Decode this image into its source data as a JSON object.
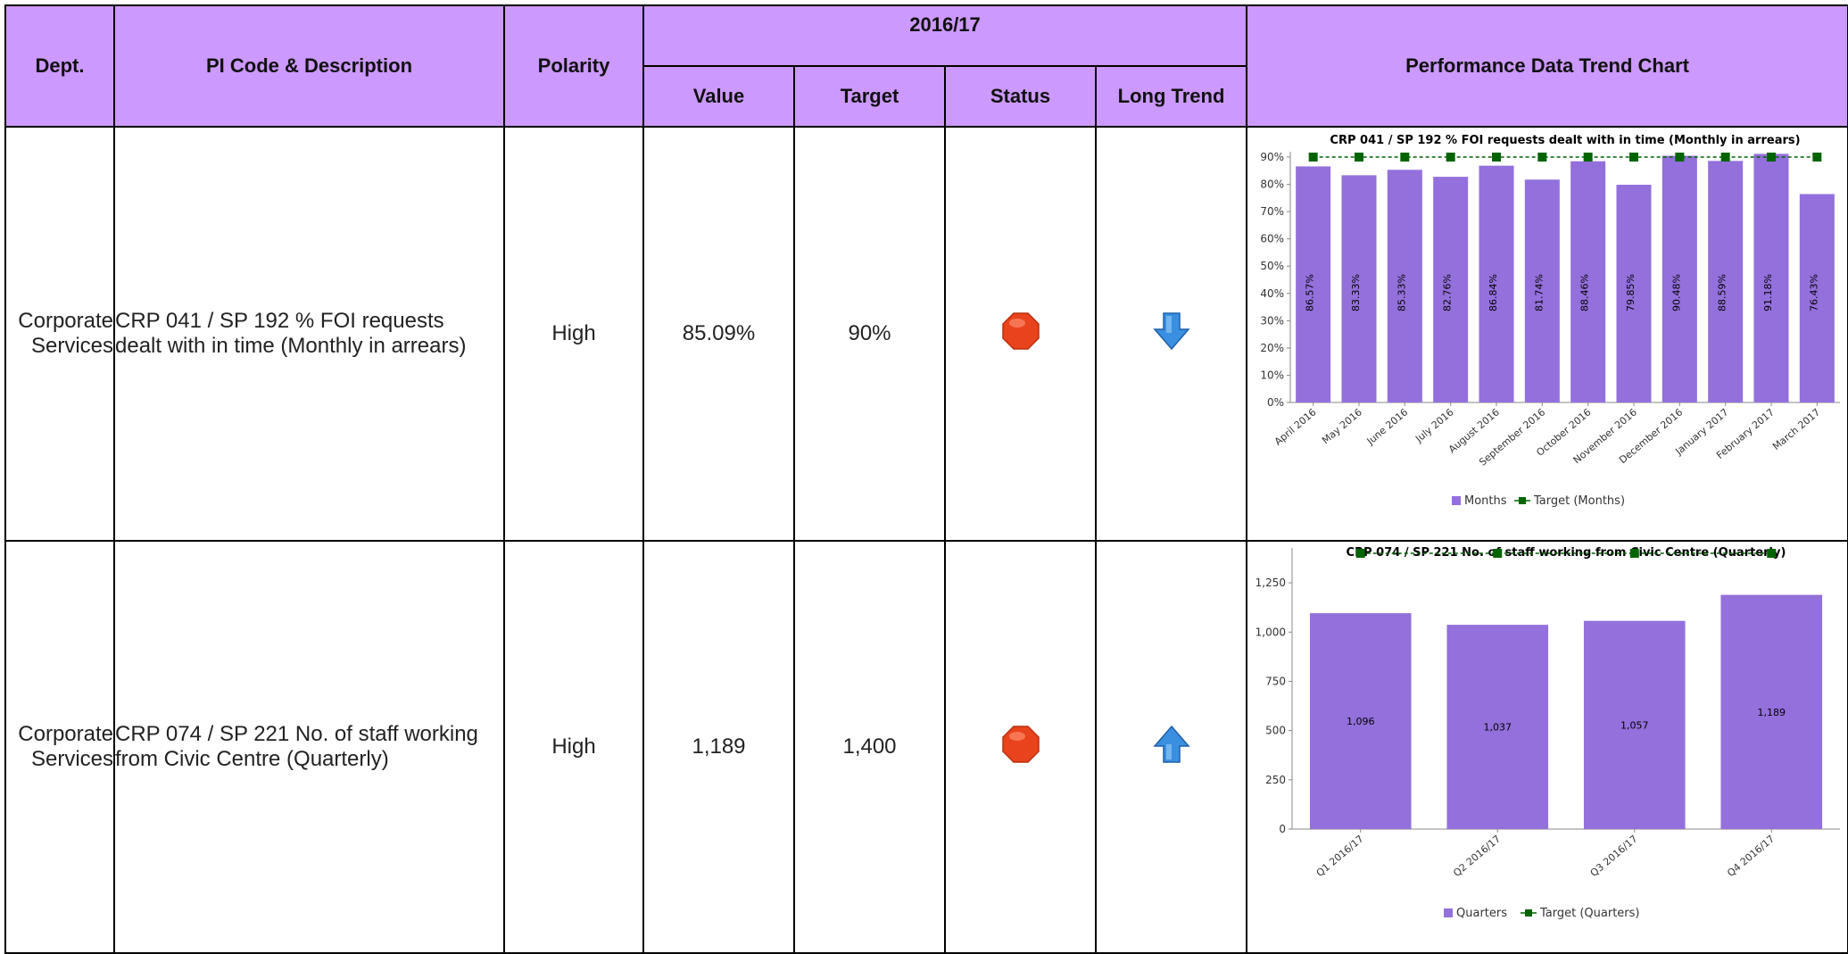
{
  "header": {
    "dept": "Dept.",
    "pi": "PI Code & Description",
    "polarity": "Polarity",
    "year": "2016/17",
    "value": "Value",
    "target": "Target",
    "status": "Status",
    "long_trend": "Long Trend",
    "chart": "Performance Data Trend Chart"
  },
  "rows": [
    {
      "dept_line1": "Corporate",
      "dept_line2": "Services",
      "desc_line1": "CRP 041 / SP 192 % FOI requests",
      "desc_line2": "dealt with in time (Monthly in arrears)",
      "polarity": "High",
      "value": "85.09%",
      "target": "90%",
      "status_icon": "red-stop-icon",
      "trend_icon": "down-arrow-icon"
    },
    {
      "dept_line1": "Corporate",
      "dept_line2": "Services",
      "desc_line1": "CRP 074 / SP 221 No. of staff working",
      "desc_line2": "from Civic Centre (Quarterly)",
      "polarity": "High",
      "value": "1,189",
      "target": "1,400",
      "status_icon": "red-stop-icon",
      "trend_icon": "up-arrow-icon"
    }
  ],
  "colors": {
    "header_bg": "#cc99ff",
    "bar": "#9370db",
    "target_line": "#006400",
    "status_red": "#e8431c",
    "trend_blue": "#3a8fe0"
  },
  "chart_data": [
    {
      "type": "bar",
      "title": "CRP 041 / SP 192 % FOI requests dealt with in time (Monthly in arrears)",
      "categories": [
        "April 2016",
        "May 2016",
        "June 2016",
        "July 2016",
        "August 2016",
        "September 2016",
        "October 2016",
        "November 2016",
        "December 2016",
        "January 2017",
        "February 2017",
        "March 2017"
      ],
      "series": [
        {
          "name": "Months",
          "values": [
            86.57,
            83.33,
            85.33,
            82.76,
            86.84,
            81.74,
            88.46,
            79.85,
            90.48,
            88.59,
            91.18,
            76.43
          ],
          "labels": [
            "86.57%",
            "83.33%",
            "85.33%",
            "82.76%",
            "86.84%",
            "81.74%",
            "88.46%",
            "79.85%",
            "90.48%",
            "88.59%",
            "91.18%",
            "76.43%"
          ]
        },
        {
          "name": "Target (Months)",
          "type": "line",
          "values": [
            90,
            90,
            90,
            90,
            90,
            90,
            90,
            90,
            90,
            90,
            90,
            90
          ]
        }
      ],
      "ylim": [
        0,
        90
      ],
      "yticks": [
        0,
        10,
        20,
        30,
        40,
        50,
        60,
        70,
        80,
        90
      ],
      "ytick_labels": [
        "0%",
        "10%",
        "20%",
        "30%",
        "40%",
        "50%",
        "60%",
        "70%",
        "80%",
        "90%"
      ],
      "legend": "bottom-center",
      "grid": false
    },
    {
      "type": "bar",
      "title": "CRP 074 / SP 221 No. of staff working from Civic Centre (Quarterly)",
      "categories": [
        "Q1 2016/17",
        "Q2 2016/17",
        "Q3 2016/17",
        "Q4 2016/17"
      ],
      "series": [
        {
          "name": "Quarters",
          "values": [
            1096,
            1037,
            1057,
            1189
          ],
          "labels": [
            "1,096",
            "1,037",
            "1,057",
            "1,189"
          ]
        },
        {
          "name": "Target (Quarters)",
          "type": "line",
          "values": [
            1400,
            1400,
            1400,
            1400
          ]
        }
      ],
      "ylim": [
        0,
        1400
      ],
      "yticks": [
        0,
        250,
        500,
        750,
        1000,
        1250
      ],
      "ytick_labels": [
        "0",
        "250",
        "500",
        "750",
        "1,000",
        "1,250"
      ],
      "legend": "bottom-center",
      "grid": false
    }
  ]
}
